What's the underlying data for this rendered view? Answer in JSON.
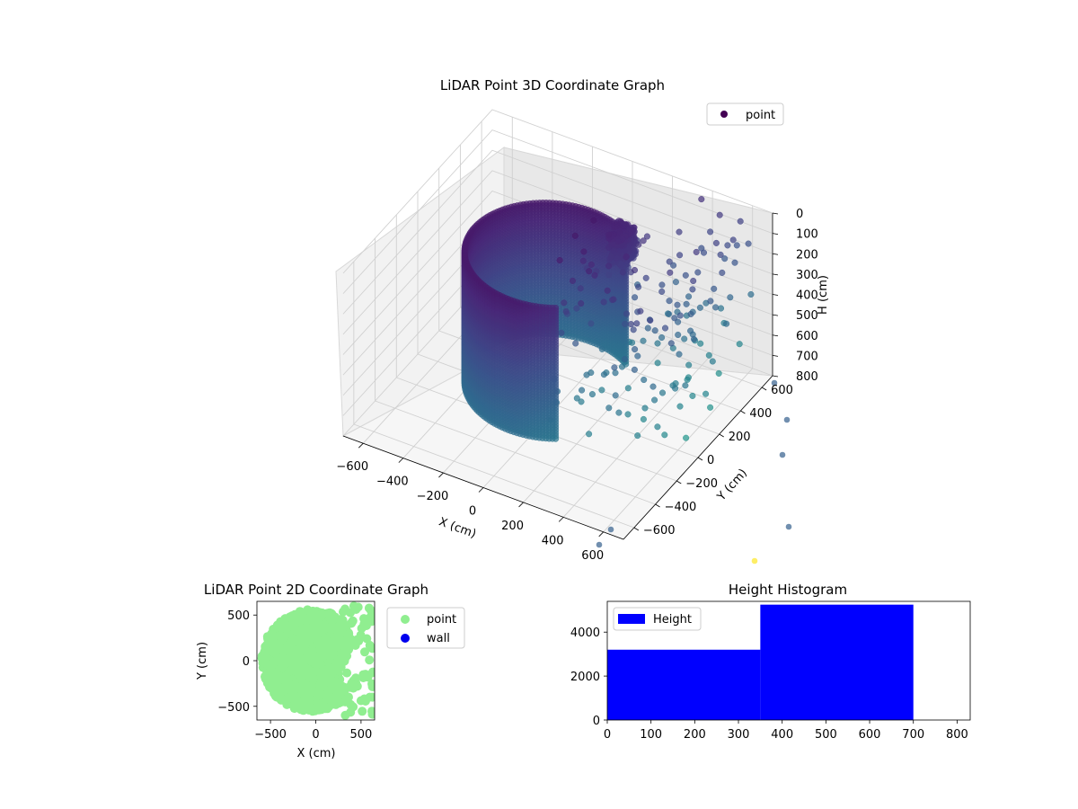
{
  "chart_data": [
    {
      "type": "scatter3d",
      "title": "LiDAR Point 3D Coordinate Graph",
      "xlabel": "X (cm)",
      "ylabel": "Y (cm)",
      "zlabel": "H (cm)",
      "xlim": [
        -700,
        700
      ],
      "ylim": [
        -700,
        700
      ],
      "zlim": [
        800,
        0
      ],
      "xticks": [
        "−600",
        "−400",
        "−200",
        "0",
        "200",
        "400",
        "600"
      ],
      "yticks": [
        "−600",
        "−400",
        "−200",
        "0",
        "200",
        "400",
        "600"
      ],
      "zticks": [
        "0",
        "100",
        "200",
        "300",
        "400",
        "500",
        "600",
        "700",
        "800"
      ],
      "legend": [
        "point"
      ],
      "legend_position": "top-right",
      "colormap": "viridis",
      "grid": true,
      "series": [
        {
          "name": "point",
          "note_values": "dense cylindrical wall of points approx. radius 400 cm, heights 0-700 cm"
        }
      ]
    },
    {
      "type": "scatter",
      "title": "LiDAR Point 2D Coordinate Graph",
      "xlabel": "X (cm)",
      "ylabel": "Y (cm)",
      "xlim": [
        -650,
        650
      ],
      "ylim": [
        -650,
        650
      ],
      "xticks": [
        "−500",
        "0",
        "500"
      ],
      "yticks": [
        "500",
        "0",
        "−500"
      ],
      "legend": [
        "point",
        "wall"
      ],
      "legend_position": "outside-right",
      "grid": false,
      "series": [
        {
          "name": "point",
          "color": "#90ee90"
        },
        {
          "name": "wall",
          "color": "#0000ee"
        }
      ]
    },
    {
      "type": "bar",
      "title": "Height Histogram",
      "xlabel": "",
      "ylabel": "",
      "xlim": [
        0,
        830
      ],
      "ylim": [
        0,
        5400
      ],
      "xticks": [
        "0",
        "100",
        "200",
        "300",
        "400",
        "500",
        "600",
        "700",
        "800"
      ],
      "yticks": [
        "0",
        "2000",
        "4000"
      ],
      "legend": [
        "Height"
      ],
      "legend_position": "upper-left",
      "color": "#0000ff",
      "bins": [
        {
          "x0": 0,
          "x1": 350,
          "count": 3200
        },
        {
          "x0": 350,
          "x1": 700,
          "count": 5250
        }
      ],
      "grid": false
    }
  ]
}
